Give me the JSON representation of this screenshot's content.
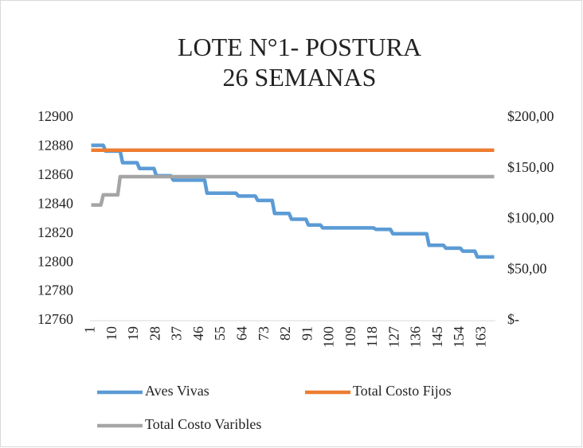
{
  "chart_data": {
    "type": "line",
    "title": "LOTE N°1- POSTURA 26 SEMANAS",
    "xlim": [
      0.5,
      168.5
    ],
    "xticks": [
      1,
      10,
      19,
      28,
      37,
      46,
      55,
      64,
      73,
      82,
      91,
      100,
      109,
      118,
      127,
      136,
      145,
      154,
      163
    ],
    "ylim": [
      12760,
      12900
    ],
    "yticks": [
      12760,
      12780,
      12800,
      12820,
      12840,
      12860,
      12880,
      12900
    ],
    "y2lim": [
      0,
      200
    ],
    "y2ticks": [
      {
        "value": 0,
        "label": "$-"
      },
      {
        "value": 50,
        "label": "$50,00"
      },
      {
        "value": 100,
        "label": "$100,00"
      },
      {
        "value": 150,
        "label": "$150,00"
      },
      {
        "value": 200,
        "label": "$200,00"
      }
    ],
    "grid": false,
    "legend": "bottom",
    "series": [
      {
        "name": "Aves Vivas",
        "color": "#5b9bd5",
        "x": [
          1,
          6,
          7,
          13,
          14,
          20,
          21,
          27,
          28,
          34,
          35,
          48,
          49,
          61,
          62,
          69,
          70,
          76,
          77,
          83,
          84,
          90,
          91,
          96,
          97,
          118,
          119,
          125,
          126,
          140,
          141,
          147,
          148,
          154,
          155,
          160,
          161,
          168
        ],
        "values": [
          12881,
          12881,
          12877,
          12877,
          12869,
          12869,
          12865,
          12865,
          12860,
          12860,
          12857,
          12857,
          12848,
          12848,
          12846,
          12846,
          12843,
          12843,
          12834,
          12834,
          12830,
          12830,
          12826,
          12826,
          12824,
          12824,
          12823,
          12823,
          12820,
          12820,
          12812,
          12812,
          12810,
          12810,
          12808,
          12808,
          12804,
          12804
        ]
      },
      {
        "name": "Total Costo Fijos",
        "color": "#ed7d31",
        "axis": "y2",
        "x": [
          1,
          168
        ],
        "values": [
          168,
          168
        ]
      },
      {
        "name": "Total Costo Varibles",
        "color": "#a5a5a5",
        "axis": "y2",
        "x": [
          1,
          5,
          6,
          12,
          13,
          168
        ],
        "values": [
          114,
          114,
          124,
          124,
          142,
          142
        ]
      }
    ]
  }
}
